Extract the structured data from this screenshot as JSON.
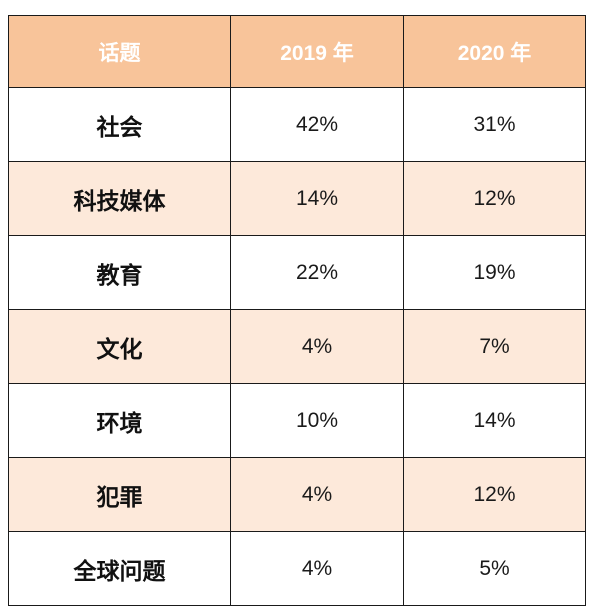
{
  "table": {
    "header": {
      "topic": "话题",
      "y2019": "2019 年",
      "y2020": "2020 年"
    },
    "rows": [
      {
        "topic": "社会",
        "y2019": "42%",
        "y2020": "31%"
      },
      {
        "topic": "科技媒体",
        "y2019": "14%",
        "y2020": "12%"
      },
      {
        "topic": "教育",
        "y2019": "22%",
        "y2020": "19%"
      },
      {
        "topic": "文化",
        "y2019": "4%",
        "y2020": "7%"
      },
      {
        "topic": "环境",
        "y2019": "10%",
        "y2020": "14%"
      },
      {
        "topic": "犯罪",
        "y2019": "4%",
        "y2020": "12%"
      },
      {
        "topic": "全球问题",
        "y2019": "4%",
        "y2020": "5%"
      }
    ]
  },
  "colors": {
    "header_bg": "#f8c49a",
    "header_text": "#ffffff",
    "row_alt_bg": "#fde9da",
    "row_bg": "#ffffff",
    "border": "#1a1a1a"
  }
}
